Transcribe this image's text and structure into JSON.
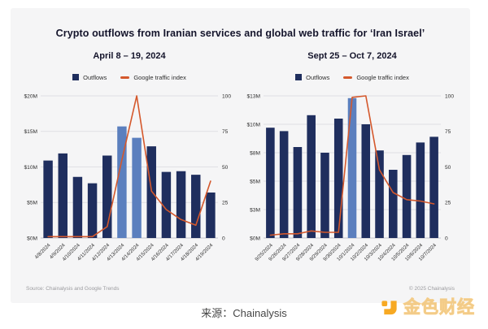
{
  "page": {
    "footer_source": "来源：Chainalysis",
    "watermark": {
      "brand": "金色财经",
      "accent_color": "#f7a923"
    }
  },
  "card": {
    "title": "Crypto outflows from Iranian services and global web traffic for ‘Iran Israel’",
    "source_note": "Source: Chainalysis and Google Trends",
    "copyright": "© 2025 Chainalysis",
    "background": "#f5f5f6"
  },
  "legend": {
    "outflows_label": "Outflows",
    "traffic_label": "Google traffic index"
  },
  "colors": {
    "bar": "#1f2e5e",
    "bar_highlight": "#5b7fbe",
    "line": "#d4582c",
    "grid": "#e0e0e4",
    "axis_line": "#c3c3c9",
    "axis_text": "#2e2e2e"
  },
  "chart_data": [
    {
      "type": "bar+line",
      "title": "April 8 – 19, 2024",
      "categories": [
        "4/8/2024",
        "4/9/2024",
        "4/10/2024",
        "4/11/2024",
        "4/12/2024",
        "4/13/2024",
        "4/14/2024",
        "4/15/2024",
        "4/16/2024",
        "4/17/2024",
        "4/18/2024",
        "4/19/2024"
      ],
      "series": [
        {
          "name": "Outflows",
          "type": "bar",
          "axis": "left",
          "unit": "USD millions",
          "values": [
            10.9,
            11.9,
            8.6,
            7.7,
            11.6,
            15.7,
            14.1,
            12.9,
            9.3,
            9.4,
            8.9,
            6.4
          ],
          "highlight_indices": [
            5,
            6
          ]
        },
        {
          "name": "Google traffic index",
          "type": "line",
          "axis": "right",
          "values": [
            1,
            1,
            1,
            1,
            8,
            55,
            100,
            33,
            20,
            13,
            9,
            40
          ]
        }
      ],
      "left_axis": {
        "max": 20,
        "ticks": [
          {
            "label": "$0M",
            "value": 0
          },
          {
            "label": "$5M",
            "value": 5
          },
          {
            "label": "$10M",
            "value": 10
          },
          {
            "label": "$15M",
            "value": 15
          },
          {
            "label": "$20M",
            "value": 20
          }
        ]
      },
      "right_axis": {
        "max": 100,
        "ticks": [
          0,
          25,
          50,
          75,
          100
        ]
      },
      "grid": true,
      "legend_position": "top"
    },
    {
      "type": "bar+line",
      "title": "Sept 25 – Oct 7, 2024",
      "categories": [
        "9/25/2024",
        "9/26/2024",
        "9/27/2024",
        "9/28/2024",
        "9/29/2024",
        "9/30/2024",
        "10/1/2024",
        "10/2/2024",
        "10/3/2024",
        "10/4/2024",
        "10/5/2024",
        "10/6/2024",
        "10/7/2024"
      ],
      "series": [
        {
          "name": "Outflows",
          "type": "bar",
          "axis": "left",
          "unit": "USD millions",
          "values": [
            9.7,
            9.4,
            8.0,
            10.8,
            7.5,
            10.5,
            12.3,
            10.0,
            7.7,
            6.0,
            7.3,
            8.4,
            8.9
          ],
          "highlight_indices": [
            6
          ]
        },
        {
          "name": "Google traffic index",
          "type": "line",
          "axis": "right",
          "values": [
            2,
            3,
            3,
            5,
            4,
            4,
            99,
            100,
            48,
            32,
            27,
            26,
            24
          ]
        }
      ],
      "left_axis": {
        "max": 12.5,
        "ticks": [
          {
            "label": "$0M",
            "value": 0
          },
          {
            "label": "$3M",
            "value": 2.5
          },
          {
            "label": "$5M",
            "value": 5
          },
          {
            "label": "$8M",
            "value": 7.5
          },
          {
            "label": "$10M",
            "value": 10
          },
          {
            "label": "$13M",
            "value": 12.5
          }
        ]
      },
      "right_axis": {
        "max": 100,
        "ticks": [
          0,
          25,
          50,
          75,
          100
        ]
      },
      "grid": true,
      "legend_position": "top"
    }
  ]
}
